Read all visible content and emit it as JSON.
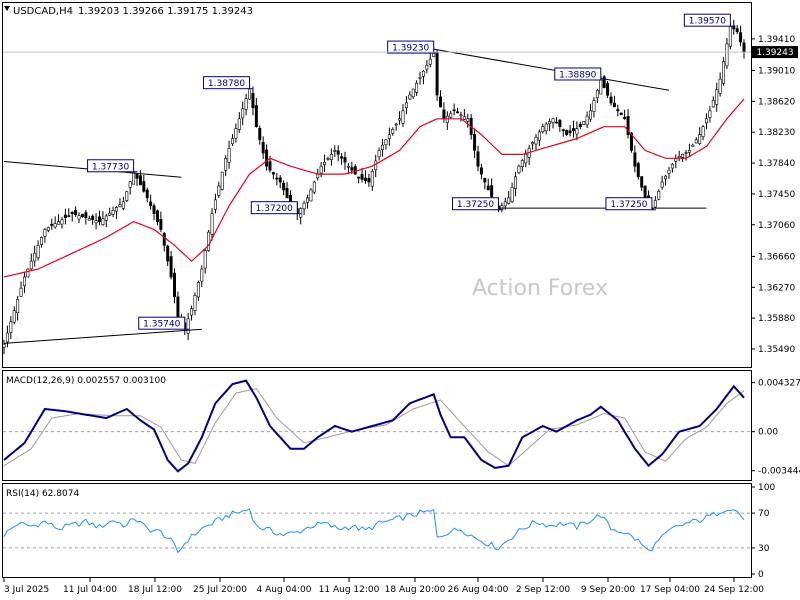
{
  "chart_data": {
    "type": "candlestick",
    "symbol_label": "USDCAD,H4",
    "ohlc_label": "1.39203 1.39266 1.39175 1.39243",
    "watermark": "Action Forex",
    "colors": {
      "background": "#ffffff",
      "price_line": "#000000",
      "moving_average": "#e8001c",
      "macd_line": "#000080",
      "macd_signal": "#a09a9a",
      "rsi_line": "#1e90ff",
      "label_border": "#000080",
      "label_text": "#000080",
      "current_box": "#000000",
      "current_text": "#ffffff",
      "watermark": "#c8c8c8"
    },
    "price_axis": {
      "ylim": [
        1.353,
        1.398
      ],
      "ticks": [
        "1.39410",
        "1.39010",
        "1.38620",
        "1.38230",
        "1.37840",
        "1.37450",
        "1.37060",
        "1.36660",
        "1.36270",
        "1.35880",
        "1.35490"
      ],
      "current_value": 1.39243,
      "current_label": "1.39243"
    },
    "x_axis": {
      "tick_labels": [
        "3 Jul 2025",
        "11 Jul 04:00",
        "18 Jul 12:00",
        "25 Jul 20:00",
        "4 Aug 04:00",
        "11 Aug 12:00",
        "18 Aug 20:00",
        "26 Aug 04:00",
        "2 Sep 12:00",
        "9 Sep 20:00",
        "17 Sep 04:00",
        "24 Sep 12:00"
      ]
    },
    "price_path": [
      [
        0,
        1.3555
      ],
      [
        6,
        1.364
      ],
      [
        12,
        1.37
      ],
      [
        20,
        1.372
      ],
      [
        28,
        1.371
      ],
      [
        35,
        1.3735
      ],
      [
        38,
        1.3773
      ],
      [
        42,
        1.374
      ],
      [
        46,
        1.37
      ],
      [
        49,
        1.364
      ],
      [
        51,
        1.359
      ],
      [
        53,
        1.3574
      ],
      [
        55,
        1.36
      ],
      [
        58,
        1.365
      ],
      [
        61,
        1.372
      ],
      [
        65,
        1.379
      ],
      [
        69,
        1.384
      ],
      [
        72,
        1.3878
      ],
      [
        74,
        1.383
      ],
      [
        77,
        1.378
      ],
      [
        81,
        1.376
      ],
      [
        84,
        1.373
      ],
      [
        86,
        1.372
      ],
      [
        89,
        1.374
      ],
      [
        93,
        1.378
      ],
      [
        97,
        1.38
      ],
      [
        101,
        1.378
      ],
      [
        104,
        1.3765
      ],
      [
        107,
        1.376
      ],
      [
        110,
        1.38
      ],
      [
        113,
        1.382
      ],
      [
        116,
        1.384
      ],
      [
        119,
        1.387
      ],
      [
        123,
        1.39
      ],
      [
        126,
        1.3923
      ],
      [
        127,
        1.387
      ],
      [
        129,
        1.384
      ],
      [
        132,
        1.385
      ],
      [
        136,
        1.384
      ],
      [
        139,
        1.378
      ],
      [
        142,
        1.375
      ],
      [
        145,
        1.3725
      ],
      [
        148,
        1.374
      ],
      [
        151,
        1.378
      ],
      [
        155,
        1.381
      ],
      [
        158,
        1.383
      ],
      [
        161,
        1.384
      ],
      [
        165,
        1.382
      ],
      [
        169,
        1.383
      ],
      [
        172,
        1.385
      ],
      [
        175,
        1.3889
      ],
      [
        178,
        1.386
      ],
      [
        182,
        1.384
      ],
      [
        185,
        1.378
      ],
      [
        188,
        1.374
      ],
      [
        190,
        1.3725
      ],
      [
        193,
        1.376
      ],
      [
        197,
        1.379
      ],
      [
        201,
        1.38
      ],
      [
        204,
        1.382
      ],
      [
        207,
        1.385
      ],
      [
        210,
        1.389
      ],
      [
        213,
        1.3957
      ],
      [
        215,
        1.395
      ],
      [
        217,
        1.3924
      ]
    ],
    "ma_path": [
      [
        0,
        1.364
      ],
      [
        10,
        1.365
      ],
      [
        20,
        1.367
      ],
      [
        30,
        1.369
      ],
      [
        38,
        1.371
      ],
      [
        44,
        1.37
      ],
      [
        50,
        1.368
      ],
      [
        55,
        1.366
      ],
      [
        60,
        1.368
      ],
      [
        66,
        1.373
      ],
      [
        72,
        1.377
      ],
      [
        78,
        1.379
      ],
      [
        84,
        1.378
      ],
      [
        92,
        1.377
      ],
      [
        100,
        1.377
      ],
      [
        108,
        1.378
      ],
      [
        116,
        1.38
      ],
      [
        122,
        1.383
      ],
      [
        127,
        1.384
      ],
      [
        134,
        1.384
      ],
      [
        140,
        1.382
      ],
      [
        146,
        1.3795
      ],
      [
        152,
        1.3795
      ],
      [
        160,
        1.3805
      ],
      [
        168,
        1.3815
      ],
      [
        176,
        1.383
      ],
      [
        182,
        1.383
      ],
      [
        188,
        1.38
      ],
      [
        194,
        1.379
      ],
      [
        200,
        1.379
      ],
      [
        206,
        1.3805
      ],
      [
        212,
        1.384
      ],
      [
        217,
        1.3865
      ]
    ],
    "price_labels": [
      {
        "x": 38,
        "y": 1.3773,
        "text": "1.37730"
      },
      {
        "x": 53,
        "y": 1.3574,
        "text": "1.35740"
      },
      {
        "x": 72,
        "y": 1.3878,
        "text": "1.38780"
      },
      {
        "x": 86,
        "y": 1.372,
        "text": "1.37200"
      },
      {
        "x": 126,
        "y": 1.3923,
        "text": "1.39230"
      },
      {
        "x": 145,
        "y": 1.3725,
        "text": "1.37250"
      },
      {
        "x": 175,
        "y": 1.3889,
        "text": "1.38890"
      },
      {
        "x": 190,
        "y": 1.3725,
        "text": "1.37250"
      },
      {
        "x": 213,
        "y": 1.3957,
        "text": "1.39570"
      }
    ],
    "trendlines": [
      {
        "from": [
          0,
          1.3786
        ],
        "to": [
          52,
          1.3766
        ]
      },
      {
        "from": [
          0,
          1.3556
        ],
        "to": [
          58,
          1.3574
        ]
      },
      {
        "from": [
          126,
          1.3928
        ],
        "to": [
          195,
          1.3876
        ]
      },
      {
        "from": [
          143,
          1.3727
        ],
        "to": [
          206,
          1.3727
        ]
      }
    ],
    "macd": {
      "title": "MACD(12,26,9) 0.002557 0.003100",
      "ticks": [
        "0.004327",
        "0.00",
        "-0.003444"
      ],
      "ylim": [
        -0.004,
        0.005
      ],
      "line_path": [
        [
          0,
          -0.0025
        ],
        [
          6,
          -0.001
        ],
        [
          12,
          0.002
        ],
        [
          18,
          0.0018
        ],
        [
          24,
          0.0015
        ],
        [
          30,
          0.0012
        ],
        [
          36,
          0.002
        ],
        [
          40,
          0.001
        ],
        [
          44,
          0.0002
        ],
        [
          48,
          -0.0025
        ],
        [
          51,
          -0.0035
        ],
        [
          54,
          -0.0028
        ],
        [
          58,
          -0.0005
        ],
        [
          62,
          0.0025
        ],
        [
          67,
          0.0042
        ],
        [
          71,
          0.0045
        ],
        [
          74,
          0.003
        ],
        [
          78,
          0.0005
        ],
        [
          84,
          -0.0015
        ],
        [
          88,
          -0.0015
        ],
        [
          92,
          -0.0005
        ],
        [
          97,
          0.0005
        ],
        [
          102,
          0.0
        ],
        [
          108,
          0.0005
        ],
        [
          114,
          0.001
        ],
        [
          119,
          0.0025
        ],
        [
          126,
          0.0033
        ],
        [
          128,
          0.0015
        ],
        [
          131,
          -0.0005
        ],
        [
          135,
          -0.0005
        ],
        [
          140,
          -0.0025
        ],
        [
          144,
          -0.0032
        ],
        [
          148,
          -0.003
        ],
        [
          152,
          -0.0005
        ],
        [
          158,
          0.0005
        ],
        [
          162,
          0.0
        ],
        [
          168,
          0.001
        ],
        [
          172,
          0.0015
        ],
        [
          175,
          0.0022
        ],
        [
          180,
          0.001
        ],
        [
          185,
          -0.0015
        ],
        [
          189,
          -0.003
        ],
        [
          193,
          -0.002
        ],
        [
          198,
          0.0
        ],
        [
          204,
          0.0005
        ],
        [
          209,
          0.002
        ],
        [
          214,
          0.004
        ],
        [
          217,
          0.003
        ]
      ],
      "signal_path": [
        [
          0,
          -0.003
        ],
        [
          8,
          -0.0015
        ],
        [
          14,
          0.0012
        ],
        [
          22,
          0.0016
        ],
        [
          32,
          0.0014
        ],
        [
          40,
          0.0014
        ],
        [
          46,
          0.0004
        ],
        [
          52,
          -0.0025
        ],
        [
          56,
          -0.0028
        ],
        [
          62,
          0.0008
        ],
        [
          68,
          0.0034
        ],
        [
          74,
          0.0038
        ],
        [
          80,
          0.0012
        ],
        [
          88,
          -0.001
        ],
        [
          96,
          -0.0004
        ],
        [
          104,
          0.0002
        ],
        [
          112,
          0.0006
        ],
        [
          120,
          0.002
        ],
        [
          128,
          0.0028
        ],
        [
          134,
          0.0008
        ],
        [
          142,
          -0.0018
        ],
        [
          148,
          -0.003
        ],
        [
          154,
          -0.0014
        ],
        [
          160,
          0.0002
        ],
        [
          168,
          0.0006
        ],
        [
          176,
          0.0016
        ],
        [
          182,
          0.0012
        ],
        [
          188,
          -0.0018
        ],
        [
          194,
          -0.0026
        ],
        [
          200,
          -0.0006
        ],
        [
          206,
          0.0004
        ],
        [
          212,
          0.0025
        ],
        [
          217,
          0.0036
        ]
      ]
    },
    "rsi": {
      "title": "RSI(14) 62.8074",
      "ticks": [
        "100",
        "70",
        "30",
        "0"
      ],
      "ylim": [
        0,
        100
      ],
      "levels": [
        70,
        30
      ],
      "path": [
        [
          0,
          45
        ],
        [
          4,
          58
        ],
        [
          8,
          55
        ],
        [
          12,
          60
        ],
        [
          16,
          52
        ],
        [
          20,
          56
        ],
        [
          24,
          60
        ],
        [
          28,
          54
        ],
        [
          32,
          62
        ],
        [
          36,
          55
        ],
        [
          38,
          65
        ],
        [
          42,
          52
        ],
        [
          46,
          48
        ],
        [
          49,
          38
        ],
        [
          51,
          25
        ],
        [
          54,
          40
        ],
        [
          58,
          52
        ],
        [
          62,
          60
        ],
        [
          66,
          68
        ],
        [
          70,
          72
        ],
        [
          72,
          75
        ],
        [
          74,
          55
        ],
        [
          78,
          50
        ],
        [
          82,
          45
        ],
        [
          86,
          48
        ],
        [
          90,
          55
        ],
        [
          94,
          58
        ],
        [
          98,
          52
        ],
        [
          102,
          55
        ],
        [
          106,
          50
        ],
        [
          110,
          58
        ],
        [
          114,
          62
        ],
        [
          118,
          66
        ],
        [
          122,
          70
        ],
        [
          126,
          72
        ],
        [
          127,
          42
        ],
        [
          130,
          48
        ],
        [
          134,
          52
        ],
        [
          138,
          42
        ],
        [
          142,
          35
        ],
        [
          145,
          30
        ],
        [
          148,
          40
        ],
        [
          152,
          52
        ],
        [
          156,
          60
        ],
        [
          160,
          56
        ],
        [
          164,
          58
        ],
        [
          168,
          54
        ],
        [
          172,
          62
        ],
        [
          175,
          68
        ],
        [
          178,
          52
        ],
        [
          182,
          48
        ],
        [
          186,
          38
        ],
        [
          189,
          26
        ],
        [
          192,
          38
        ],
        [
          196,
          52
        ],
        [
          200,
          58
        ],
        [
          204,
          62
        ],
        [
          208,
          68
        ],
        [
          212,
          76
        ],
        [
          215,
          72
        ],
        [
          217,
          63
        ]
      ]
    }
  }
}
